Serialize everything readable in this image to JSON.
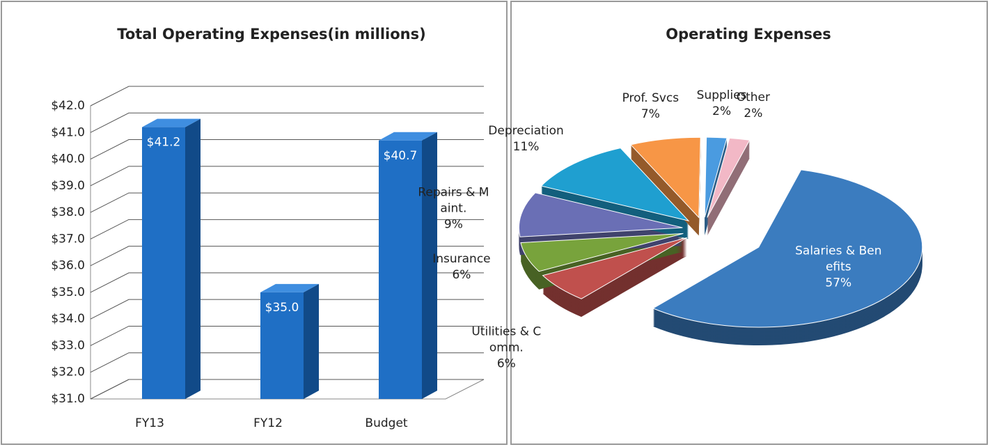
{
  "chart_data": [
    {
      "type": "bar",
      "title": "Total Operating Expenses(in millions)",
      "categories": [
        "FY13",
        "FY12",
        "Budget"
      ],
      "values": [
        41.2,
        35.0,
        40.7
      ],
      "value_labels": [
        "$41.2",
        "$35.0",
        "$40.7"
      ],
      "color": "#1f6fc5",
      "ylim": [
        31,
        42
      ],
      "yticks": [
        {
          "value": 31,
          "label": "$31.0"
        },
        {
          "value": 32,
          "label": "$32.0"
        },
        {
          "value": 33,
          "label": "$33.0"
        },
        {
          "value": 34,
          "label": "$34.0"
        },
        {
          "value": 35,
          "label": "$35.0"
        },
        {
          "value": 36,
          "label": "$36.0"
        },
        {
          "value": 37,
          "label": "$37.0"
        },
        {
          "value": 38,
          "label": "$38.0"
        },
        {
          "value": 39,
          "label": "$39.0"
        },
        {
          "value": 40,
          "label": "$40.0"
        },
        {
          "value": 41,
          "label": "$41.0"
        },
        {
          "value": 42,
          "label": "$42.0"
        }
      ],
      "grid": true
    },
    {
      "type": "pie",
      "title": "Operating Expenses",
      "categories": [
        "Salaries & Benefits",
        "Utilities & Comm.",
        "Insurance",
        "Repairs & Maint.",
        "Depreciation",
        "Prof. Svcs",
        "Supplies",
        "Other"
      ],
      "values": [
        57,
        6,
        6,
        9,
        11,
        7,
        2,
        2
      ],
      "value_labels": [
        "57%",
        "6%",
        "6%",
        "9%",
        "11%",
        "7%",
        "2%",
        "2%"
      ],
      "colors": [
        "#3b7cbf",
        "#c0504d",
        "#78a33c",
        "#6a6fb5",
        "#1f9fd0",
        "#f79646",
        "#4a9be0",
        "#f2b8c6"
      ]
    }
  ]
}
